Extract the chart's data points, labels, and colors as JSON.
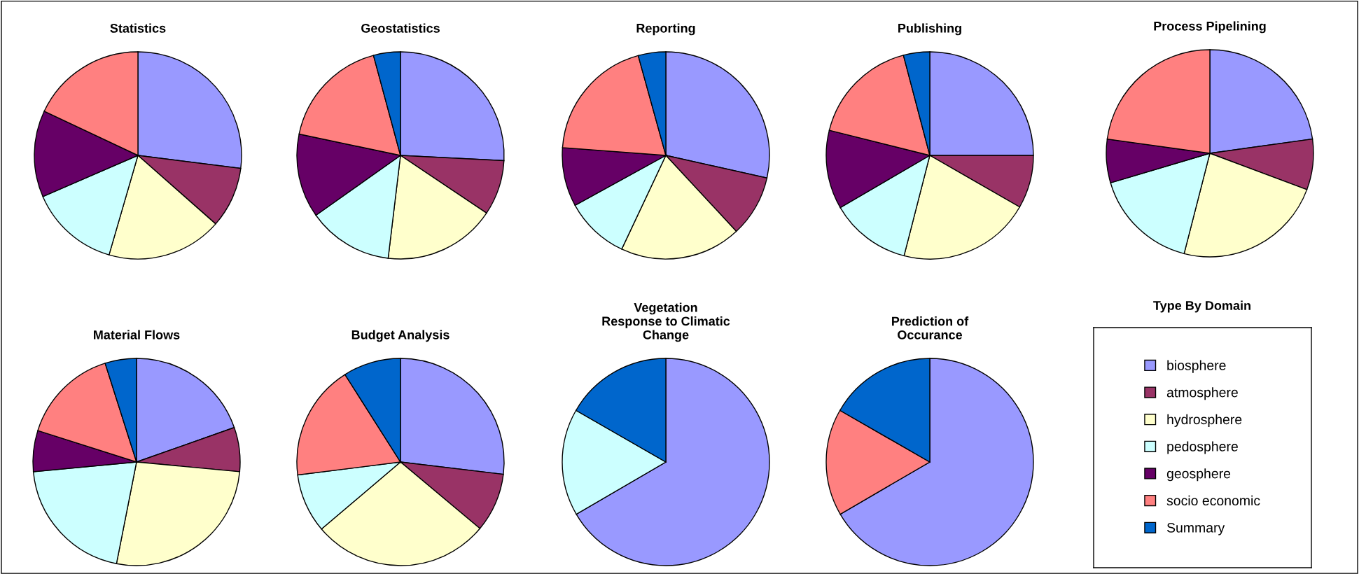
{
  "chart_data": [
    {
      "type": "pie",
      "title": "Statistics",
      "legend": "right",
      "legend_title": "Type By Domain",
      "categories": [
        "biosphere",
        "atmosphere",
        "hydrosphere",
        "pedosphere",
        "geosphere",
        "socio economic",
        "Summary"
      ],
      "values": [
        27,
        9.5,
        18,
        14,
        13.5,
        18,
        0
      ],
      "colors": [
        "#9999ff",
        "#993366",
        "#ffffcc",
        "#ccffff",
        "#660066",
        "#ff8080",
        "#0066cc"
      ]
    },
    {
      "type": "pie",
      "title": "Geostatistics",
      "categories": [
        null,
        null,
        null,
        null,
        null,
        null,
        null
      ],
      "values": [
        25.8,
        8.6,
        17.5,
        13.3,
        13.1,
        17.5,
        4.2
      ],
      "colors": [
        "#9999ff",
        "#993366",
        "#ffffcc",
        "#ccffff",
        "#660066",
        "#ff8080",
        "#0066cc"
      ]
    },
    {
      "type": "pie",
      "title": "Reporting",
      "categories": [
        null,
        null,
        null,
        null,
        null,
        null,
        null
      ],
      "values": [
        28.5,
        9.6,
        18.9,
        10,
        9.2,
        19.5,
        4.3
      ],
      "colors": [
        "#9999ff",
        "#993366",
        "#ffffcc",
        "#ccffff",
        "#660066",
        "#ff8080",
        "#0066cc"
      ]
    },
    {
      "type": "pie",
      "title": "Publishing",
      "categories": [
        null,
        null,
        null,
        null,
        null,
        null,
        null
      ],
      "values": [
        25,
        8.3,
        20.7,
        12.6,
        12.3,
        17,
        4.1
      ],
      "colors": [
        "#9999ff",
        "#993366",
        "#ffffcc",
        "#ccffff",
        "#660066",
        "#ff8080",
        "#0066cc"
      ]
    },
    {
      "type": "pie",
      "title": "Process Pipelining",
      "categories": [
        null,
        null,
        null,
        null,
        null,
        null,
        null
      ],
      "values": [
        22.8,
        7.9,
        23.3,
        16.4,
        6.8,
        22.8,
        0
      ],
      "colors": [
        "#9999ff",
        "#993366",
        "#ffffcc",
        "#ccffff",
        "#660066",
        "#ff8080",
        "#0066cc"
      ]
    },
    {
      "type": "pie",
      "title": "Material Flows",
      "categories": [
        null,
        null,
        null,
        null,
        null,
        null,
        null
      ],
      "values": [
        19.6,
        6.9,
        26.6,
        20.4,
        6.4,
        15.2,
        4.9
      ],
      "colors": [
        "#9999ff",
        "#993366",
        "#ffffcc",
        "#ccffff",
        "#660066",
        "#ff8080",
        "#0066cc"
      ]
    },
    {
      "type": "pie",
      "title": "Budget Analysis",
      "categories": [
        null,
        null,
        null,
        null,
        null,
        null,
        null
      ],
      "values": [
        26.9,
        9.2,
        27.7,
        9.2,
        0,
        18,
        9
      ],
      "colors": [
        "#9999ff",
        "#993366",
        "#ffffcc",
        "#ccffff",
        "#660066",
        "#ff8080",
        "#0066cc"
      ]
    },
    {
      "type": "pie",
      "title": "Vegetation\nResponse to Climatic\nChange",
      "categories": [
        null,
        null,
        null,
        null,
        null,
        null,
        null
      ],
      "values": [
        66.6,
        0,
        0,
        16.7,
        0,
        0,
        16.7
      ],
      "colors": [
        "#9999ff",
        "#993366",
        "#ffffcc",
        "#ccffff",
        "#660066",
        "#ff8080",
        "#0066cc"
      ]
    },
    {
      "type": "pie",
      "title": "Prediction of\nOccurance",
      "categories": [
        null,
        null,
        null,
        null,
        null,
        null,
        null
      ],
      "values": [
        66.6,
        0,
        0,
        0,
        0,
        16.7,
        16.7
      ],
      "colors": [
        "#9999ff",
        "#993366",
        "#ffffcc",
        "#ccffff",
        "#660066",
        "#ff8080",
        "#0066cc"
      ]
    }
  ]
}
